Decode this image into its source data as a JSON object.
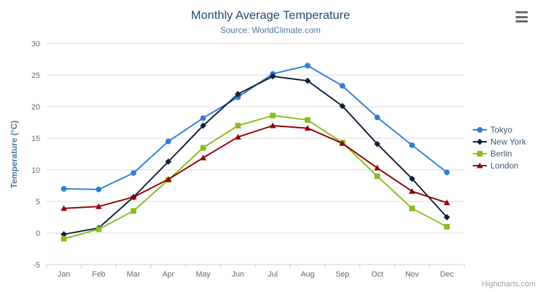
{
  "chart_data": {
    "type": "line",
    "title": "Monthly Average Temperature",
    "subtitle": "Source: WorldClimate.com",
    "xlabel": "",
    "ylabel": "Temperature (°C)",
    "categories": [
      "Jan",
      "Feb",
      "Mar",
      "Apr",
      "May",
      "Jun",
      "Jul",
      "Aug",
      "Sep",
      "Oct",
      "Nov",
      "Dec"
    ],
    "ylim": [
      -5,
      30
    ],
    "ytick_interval": 5,
    "grid": true,
    "legend_position": "right-middle",
    "series": [
      {
        "name": "Tokyo",
        "symbol": "circle",
        "color": "#2f7ed8",
        "values": [
          7.0,
          6.9,
          9.5,
          14.5,
          18.2,
          21.5,
          25.2,
          26.5,
          23.3,
          18.3,
          13.9,
          9.6
        ]
      },
      {
        "name": "New York",
        "symbol": "diamond",
        "color": "#0d233a",
        "values": [
          -0.2,
          0.8,
          5.7,
          11.3,
          17.0,
          22.0,
          24.8,
          24.1,
          20.1,
          14.1,
          8.6,
          2.5
        ]
      },
      {
        "name": "Berlin",
        "symbol": "square",
        "color": "#8bbc21",
        "values": [
          -0.9,
          0.6,
          3.5,
          8.4,
          13.5,
          17.0,
          18.6,
          17.9,
          14.3,
          9.0,
          3.9,
          1.0
        ]
      },
      {
        "name": "London",
        "symbol": "triangle",
        "color": "#910000",
        "values": [
          3.9,
          4.2,
          5.7,
          8.5,
          11.9,
          15.2,
          17.0,
          16.6,
          14.2,
          10.3,
          6.6,
          4.8
        ]
      }
    ],
    "colors": {
      "gridline": "#d8d8d8",
      "axis_line": "#c0d0e0",
      "axis_label": "#666666",
      "title": "#274b6d",
      "subtitle": "#4d759e",
      "legend_text": "#3e576f",
      "credits": "#a0a0a0"
    },
    "credits": "Highcharts.com"
  },
  "export_menu": {
    "icon": "hamburger-menu-icon"
  }
}
